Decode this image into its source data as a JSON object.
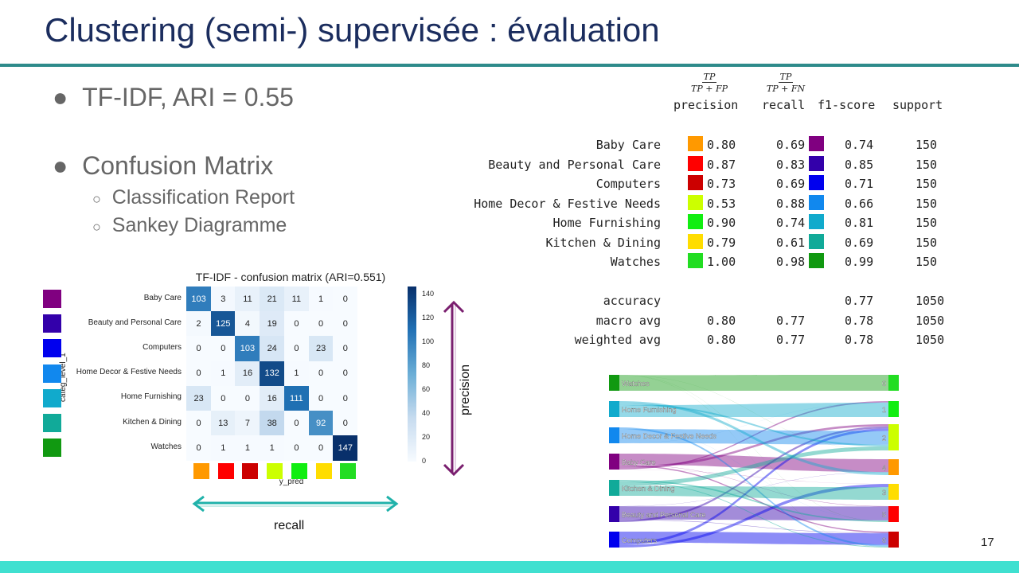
{
  "slide": {
    "title": "Clustering (semi-) supervisée : évaluation",
    "bullet1": "TF-IDF,  ARI = 0.55",
    "bullet2": "Confusion Matrix",
    "sub1": "Classification Report",
    "sub2": "Sankey Diagramme",
    "page_number": "17",
    "precision_label": "precision",
    "recall_label": "recall"
  },
  "report": {
    "formula_precision": {
      "num": "TP",
      "den": "TP + FP"
    },
    "formula_recall": {
      "num": "TP",
      "den": "TP + FN"
    },
    "headers": [
      "precision",
      "recall",
      "f1-score",
      "support"
    ],
    "rows": [
      {
        "label": "Baby Care",
        "precision": "0.80",
        "recall": "0.69",
        "f1": "0.74",
        "support": "150",
        "pred_color": "#ff9900",
        "true_color": "#800080"
      },
      {
        "label": "Beauty and Personal Care",
        "precision": "0.87",
        "recall": "0.83",
        "f1": "0.85",
        "support": "150",
        "pred_color": "#ff0000",
        "true_color": "#3300aa"
      },
      {
        "label": "Computers",
        "precision": "0.73",
        "recall": "0.69",
        "f1": "0.71",
        "support": "150",
        "pred_color": "#cc0000",
        "true_color": "#0000ee"
      },
      {
        "label": "Home Decor & Festive Needs",
        "precision": "0.53",
        "recall": "0.88",
        "f1": "0.66",
        "support": "150",
        "pred_color": "#ccff00",
        "true_color": "#1188ee"
      },
      {
        "label": "Home Furnishing",
        "precision": "0.90",
        "recall": "0.74",
        "f1": "0.81",
        "support": "150",
        "pred_color": "#11ee11",
        "true_color": "#11aacc"
      },
      {
        "label": "Kitchen & Dining",
        "precision": "0.79",
        "recall": "0.61",
        "f1": "0.69",
        "support": "150",
        "pred_color": "#ffdd00",
        "true_color": "#11aa99"
      },
      {
        "label": "Watches",
        "precision": "1.00",
        "recall": "0.98",
        "f1": "0.99",
        "support": "150",
        "pred_color": "#22dd22",
        "true_color": "#119911"
      }
    ],
    "summary": [
      {
        "label": "accuracy",
        "precision": "",
        "recall": "",
        "f1": "0.77",
        "support": "1050"
      },
      {
        "label": "macro avg",
        "precision": "0.80",
        "recall": "0.77",
        "f1": "0.78",
        "support": "1050"
      },
      {
        "label": "weighted avg",
        "precision": "0.80",
        "recall": "0.77",
        "f1": "0.78",
        "support": "1050"
      }
    ]
  },
  "chart_data": [
    {
      "type": "heatmap",
      "title": "TF-IDF - confusion matrix (ARI=0.551)",
      "ylabel": "categ_level_1",
      "xlabel": "y_pred",
      "rows": [
        "Baby Care",
        "Beauty and Personal Care",
        "Computers",
        "Home Decor & Festive Needs",
        "Home Furnishing",
        "Kitchen & Dining",
        "Watches"
      ],
      "matrix": [
        [
          103,
          3,
          11,
          21,
          11,
          1,
          0
        ],
        [
          2,
          125,
          4,
          19,
          0,
          0,
          0
        ],
        [
          0,
          0,
          103,
          24,
          0,
          23,
          0
        ],
        [
          0,
          1,
          16,
          132,
          1,
          0,
          0
        ],
        [
          23,
          0,
          0,
          16,
          111,
          0,
          0
        ],
        [
          0,
          13,
          7,
          38,
          0,
          92,
          0
        ],
        [
          0,
          1,
          1,
          1,
          0,
          0,
          147
        ]
      ],
      "colorbar_ticks": [
        "140",
        "120",
        "100",
        "80",
        "60",
        "40",
        "20",
        "0"
      ],
      "vmax": 147,
      "row_colors": [
        "#800080",
        "#3300aa",
        "#0000ee",
        "#1188ee",
        "#11aacc",
        "#11aa99",
        "#119911"
      ],
      "col_colors": [
        "#ff9900",
        "#ff0000",
        "#cc0000",
        "#ccff00",
        "#11ee11",
        "#ffdd00",
        "#22dd22"
      ]
    },
    {
      "type": "sankey",
      "left_nodes": [
        {
          "label": "Watches",
          "color": "#119911"
        },
        {
          "label": "Home Furnishing",
          "color": "#11aacc"
        },
        {
          "label": "Home Decor & Festive Needs",
          "color": "#1188ee"
        },
        {
          "label": "Baby Care",
          "color": "#800080"
        },
        {
          "label": "Kitchen & Dining",
          "color": "#11aa99"
        },
        {
          "label": "Beauty and Personal Care",
          "color": "#3300aa"
        },
        {
          "label": "Computers",
          "color": "#0000ee"
        }
      ],
      "right_nodes": [
        {
          "label": "0",
          "color": "#22dd22",
          "col": 6
        },
        {
          "label": "1",
          "color": "#11ee11",
          "col": 4
        },
        {
          "label": "2",
          "color": "#ccff00",
          "col": 3
        },
        {
          "label": "4",
          "color": "#ff9900",
          "col": 0
        },
        {
          "label": "3",
          "color": "#ffdd00",
          "col": 5
        },
        {
          "label": "5",
          "color": "#ff0000",
          "col": 1
        },
        {
          "label": "6",
          "color": "#cc0000",
          "col": 2
        }
      ]
    }
  ]
}
